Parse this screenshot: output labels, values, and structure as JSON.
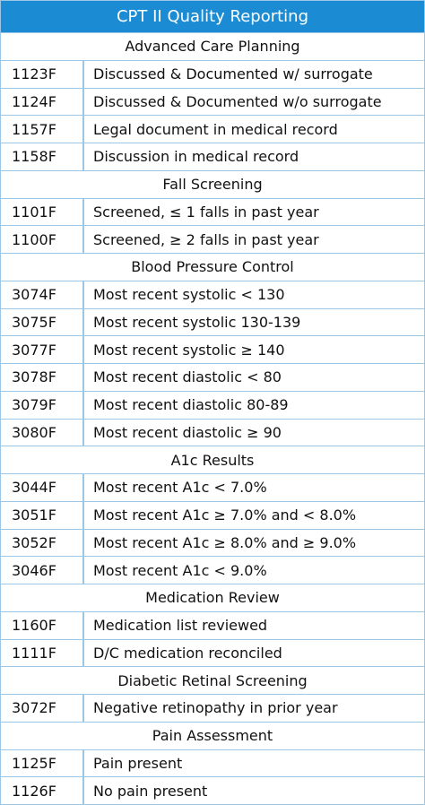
{
  "title": "CPT II Quality Reporting",
  "sections": [
    {
      "title": "Advanced Care Planning",
      "rows": [
        [
          "1123F",
          "Discussed & Documented w/ surrogate"
        ],
        [
          "1124F",
          "Discussed & Documented w/o surrogate"
        ],
        [
          "1157F",
          "Legal document in medical record"
        ],
        [
          "1158F",
          "Discussion in medical record"
        ]
      ]
    },
    {
      "title": "Fall Screening",
      "rows": [
        [
          "1101F",
          "Screened, ≤ 1 falls in past year"
        ],
        [
          "1100F",
          "Screened, ≥ 2 falls in past year"
        ]
      ]
    },
    {
      "title": "Blood Pressure Control",
      "rows": [
        [
          "3074F",
          "Most recent systolic < 130"
        ],
        [
          "3075F",
          "Most recent systolic 130-139"
        ],
        [
          "3077F",
          "Most recent systolic ≥ 140"
        ],
        [
          "3078F",
          "Most recent diastolic < 80"
        ],
        [
          "3079F",
          "Most recent diastolic 80-89"
        ],
        [
          "3080F",
          "Most recent diastolic ≥ 90"
        ]
      ]
    },
    {
      "title": "A1c Results",
      "rows": [
        [
          "3044F",
          "Most recent A1c < 7.0%"
        ],
        [
          "3051F",
          "Most recent A1c ≥ 7.0% and < 8.0%"
        ],
        [
          "3052F",
          "Most recent A1c ≥ 8.0% and ≥ 9.0%"
        ],
        [
          "3046F",
          "Most recent A1c < 9.0%"
        ]
      ]
    },
    {
      "title": "Medication Review",
      "rows": [
        [
          "1160F",
          "Medication list reviewed"
        ],
        [
          "1111F",
          "D/C medication reconciled"
        ]
      ]
    },
    {
      "title": "Diabetic Retinal Screening",
      "rows": [
        [
          "3072F",
          "Negative retinopathy in prior year"
        ]
      ]
    },
    {
      "title": "Pain Assessment",
      "rows": [
        [
          "1125F",
          "Pain present"
        ],
        [
          "1126F",
          "No pain present"
        ]
      ]
    }
  ]
}
